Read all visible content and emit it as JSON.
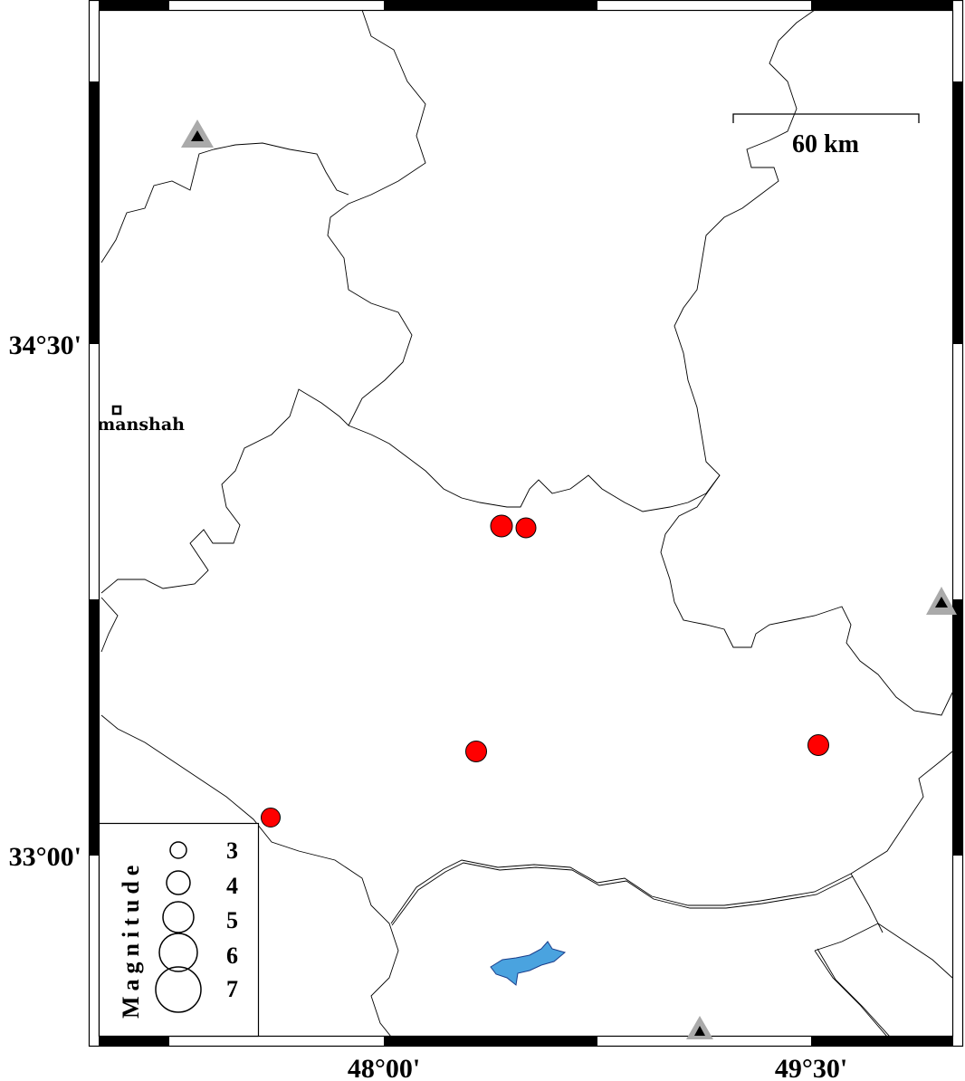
{
  "map": {
    "frame_ticks": {
      "x_labels": [
        "48°00'",
        "49°30'"
      ],
      "y_labels": [
        "34°30'",
        "33°00'"
      ]
    },
    "scale_bar": {
      "label": "60 km"
    },
    "cities": [
      {
        "name": "Kermanshah",
        "marker": "square-icon"
      }
    ],
    "earthquakes": [
      {
        "magnitude_class": "large",
        "color": "#ff0000"
      },
      {
        "magnitude_class": "large",
        "color": "#ff0000"
      },
      {
        "magnitude_class": "large",
        "color": "#ff0000"
      },
      {
        "magnitude_class": "large",
        "color": "#ff0000"
      },
      {
        "magnitude_class": "large",
        "color": "#ff0000"
      }
    ],
    "stations": {
      "icon": "triangle-icon",
      "fill": "#000000",
      "outline": "#aaaaaa",
      "count": 3
    },
    "lake_color": "#4aa3df",
    "legend": {
      "title": "Magnitude",
      "items": [
        "3",
        "4",
        "5",
        "6",
        "7"
      ]
    }
  }
}
